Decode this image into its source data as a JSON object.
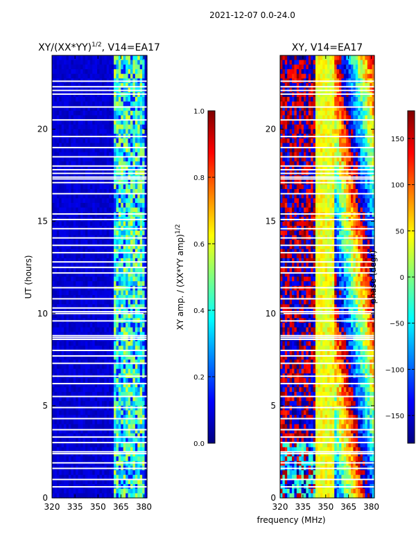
{
  "suptitle": "2021-12-07 0.0-24.0",
  "colors": {
    "jet": [
      "#00007f",
      "#0000ff",
      "#007fff",
      "#00ffff",
      "#7fff7f",
      "#ffff00",
      "#ff7f00",
      "#ff0000",
      "#7f0000"
    ]
  },
  "chart_data": [
    {
      "type": "heatmap",
      "title_main": "XY/(XX*YY)",
      "title_sup": "1/2",
      "title_rest": ", V14=EA17",
      "xlabel": "",
      "ylabel": "UT (hours)",
      "x_range": [
        320,
        382
      ],
      "y_range": [
        0,
        24
      ],
      "x_ticks": [
        "320",
        "335",
        "350",
        "365",
        "380"
      ],
      "x_tick_values": [
        320,
        335,
        350,
        365,
        380
      ],
      "y_ticks": [
        "0",
        "5",
        "10",
        "15",
        "20"
      ],
      "y_tick_values": [
        0,
        5,
        10,
        15,
        20
      ],
      "colorbar": {
        "label_main": "XY amp. / (XX*YY amp)",
        "label_sup": "1/2",
        "range": [
          0.0,
          1.0
        ],
        "ticks": [
          "0.0",
          "0.2",
          "0.4",
          "0.6",
          "0.8",
          "1.0"
        ],
        "tick_values": [
          0.0,
          0.2,
          0.4,
          0.6,
          0.8,
          1.0
        ]
      },
      "features": {
        "background_value": 0.05,
        "high_band_mhz": [
          360,
          381
        ],
        "high_band_value_range": [
          0.25,
          0.6
        ]
      }
    },
    {
      "type": "heatmap",
      "title": "XY, V14=EA17",
      "xlabel": "frequency (MHz)",
      "ylabel": "",
      "x_range": [
        320,
        382
      ],
      "y_range": [
        0,
        24
      ],
      "x_ticks": [
        "320",
        "335",
        "350",
        "365",
        "380"
      ],
      "x_tick_values": [
        320,
        335,
        350,
        365,
        380
      ],
      "y_ticks": [
        "0",
        "5",
        "10",
        "15",
        "20"
      ],
      "y_tick_values": [
        0,
        5,
        10,
        15,
        20
      ],
      "colorbar": {
        "label": "phase (degr)",
        "range": [
          -180,
          180
        ],
        "ticks": [
          "−150",
          "−100",
          "−50",
          "0",
          "50",
          "100",
          "150"
        ],
        "tick_values": [
          -150,
          -100,
          -50,
          0,
          50,
          100,
          150
        ]
      },
      "features": {
        "center_band_mhz": [
          343,
          356
        ],
        "center_band_phase": 40
      }
    }
  ],
  "gap_hours": [
    0.6,
    1.0,
    1.6,
    1.9,
    2.4,
    2.5,
    3.0,
    3.3,
    3.7,
    4.3,
    4.9,
    5.5,
    6.2,
    6.6,
    7.3,
    7.7,
    8.0,
    8.6,
    8.7,
    8.8,
    9.6,
    10.0,
    10.1,
    10.3,
    10.8,
    11.4,
    12.2,
    12.5,
    12.8,
    13.3,
    13.7,
    14.1,
    14.6,
    15.1,
    15.4,
    16.5,
    17.1,
    17.3,
    17.4,
    17.6,
    17.8,
    18.0,
    18.5,
    19.0,
    19.6,
    20.5,
    21.2,
    21.9,
    22.1,
    22.3,
    22.6
  ]
}
